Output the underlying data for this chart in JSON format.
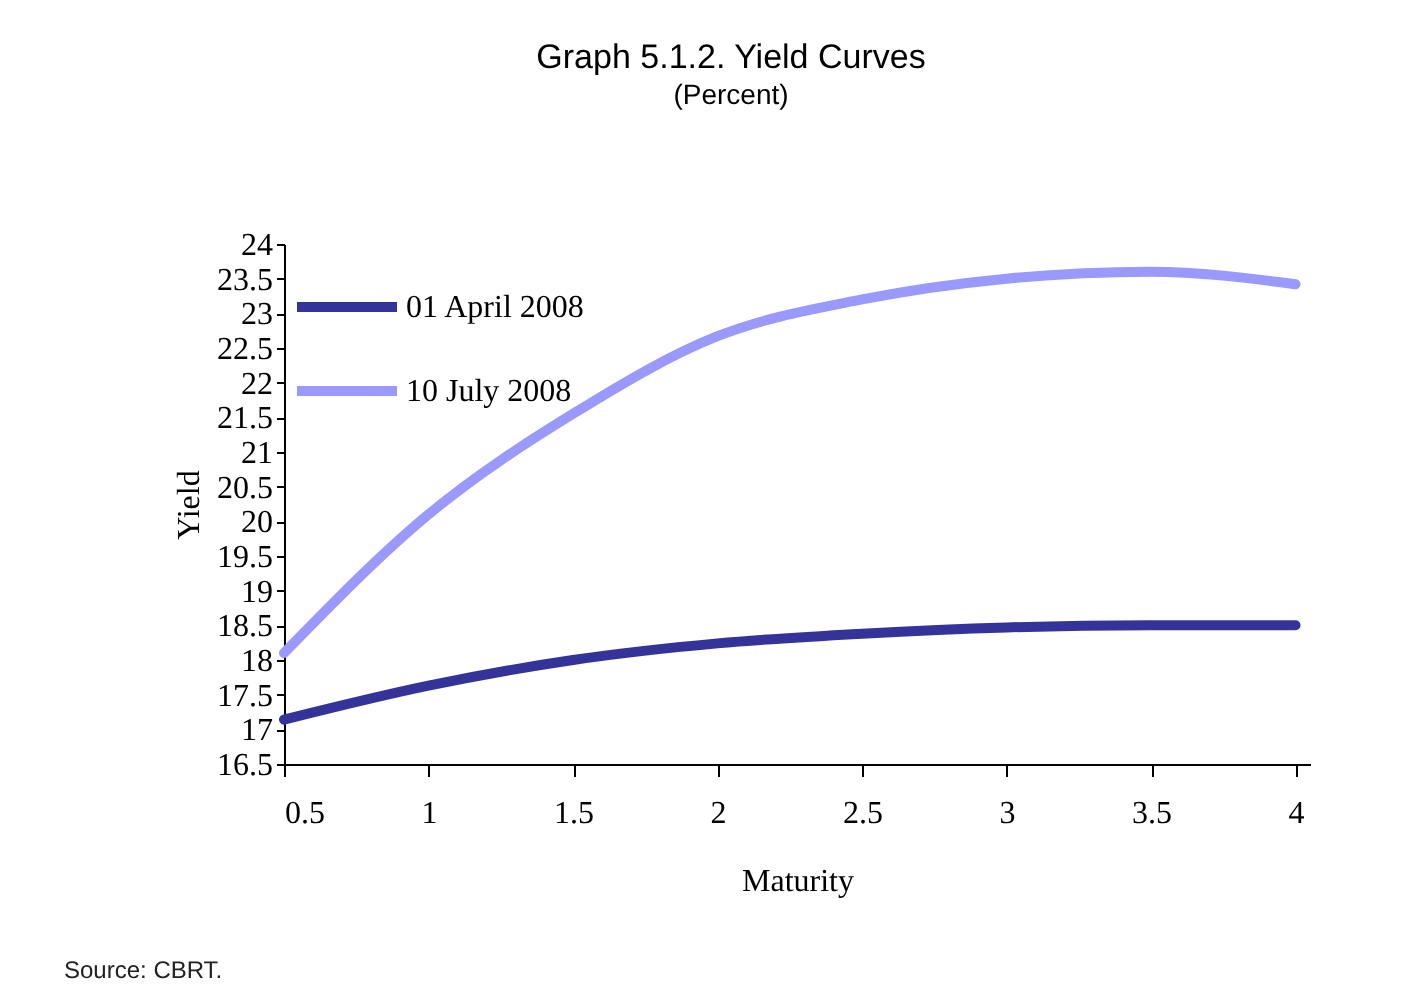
{
  "chart_data": {
    "type": "line",
    "title": "Graph  5.1.2. Yield Curves",
    "subtitle": "(Percent)",
    "xlabel": "Maturity",
    "ylabel": "Yield",
    "x": [
      0.5,
      1,
      1.5,
      2,
      2.5,
      3,
      3.5,
      4
    ],
    "series": [
      {
        "name": "01 April 2008",
        "color": "#333399",
        "values": [
          17.14,
          17.63,
          18.0,
          18.24,
          18.38,
          18.47,
          18.5,
          18.5
        ]
      },
      {
        "name": "10 July 2008",
        "color": "#9999ff",
        "values": [
          18.1,
          20.1,
          21.55,
          22.67,
          23.2,
          23.5,
          23.6,
          23.42
        ]
      }
    ],
    "xlim": [
      0.5,
      4.05
    ],
    "xticks": [
      0.5,
      1,
      1.5,
      2,
      2.5,
      3,
      3.5,
      4
    ],
    "ylim": [
      16.5,
      24
    ],
    "yticks": [
      16.5,
      17,
      17.5,
      18,
      18.5,
      19,
      19.5,
      20,
      20.5,
      21,
      21.5,
      22,
      22.5,
      23,
      23.5,
      24
    ],
    "grid": false,
    "legend": "top left",
    "marker": "none",
    "line_style": "solid",
    "annotations": [
      "Source: CBRT."
    ]
  }
}
